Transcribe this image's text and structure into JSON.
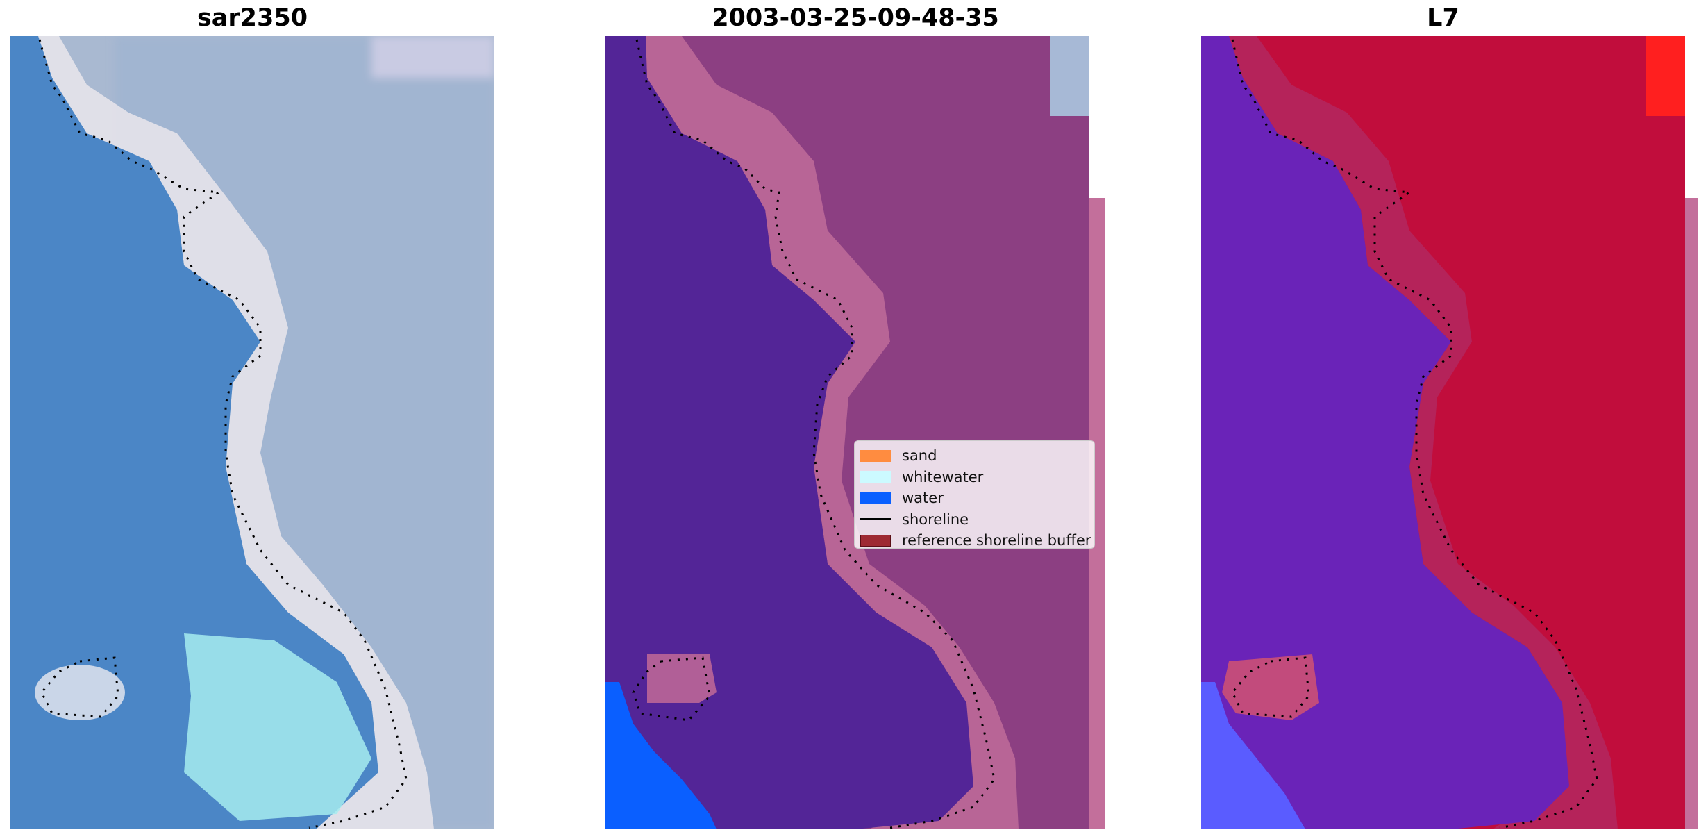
{
  "panels": [
    {
      "title": "sar2350"
    },
    {
      "title": "2003-03-25-09-48-35"
    },
    {
      "title": "L7"
    }
  ],
  "legend": {
    "items": [
      {
        "label": "sand",
        "color": "#ff8c40",
        "kind": "patch"
      },
      {
        "label": "whitewater",
        "color": "#ccfaff",
        "kind": "patch"
      },
      {
        "label": "water",
        "color": "#0a5fff",
        "kind": "patch"
      },
      {
        "label": "shoreline",
        "color": "#000000",
        "kind": "line"
      },
      {
        "label": "reference shoreline buffer",
        "color": "#9e2a33",
        "kind": "patch"
      }
    ]
  },
  "colors": {
    "rgb_water": "#4b86c6",
    "rgb_land": "#a9b9d1",
    "rgb_surf": "#eae6ec",
    "rgb_lagoon": "#a6ecee",
    "class_water": "#532597",
    "class_land": "#8c3f82",
    "class_buffer": "#c36f9b",
    "class_open_water": "#0a5fff",
    "nir_water": "#6a23b8",
    "nir_land": "#c10d3c",
    "nir_bright": "#ff1f1f"
  }
}
